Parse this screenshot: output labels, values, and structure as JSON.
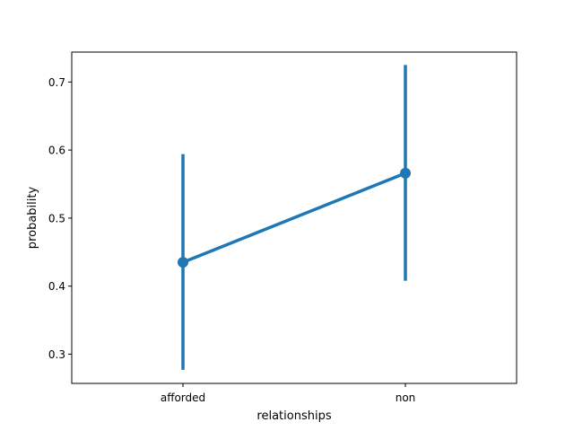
{
  "chart_data": {
    "type": "line",
    "title": "",
    "xlabel": "relationships",
    "ylabel": "probability",
    "categories": [
      "afforded",
      "non"
    ],
    "series": [
      {
        "values": [
          0.435,
          0.566
        ],
        "ci_low": [
          0.277,
          0.408
        ],
        "ci_high": [
          0.594,
          0.725
        ],
        "color": "#1f77b4"
      }
    ],
    "ylim": [
      0.257,
      0.744
    ],
    "yticks": [
      0.3,
      0.4,
      0.5,
      0.6,
      0.7
    ],
    "ytick_labels": [
      "0.3",
      "0.4",
      "0.5",
      "0.6",
      "0.7"
    ],
    "grid": false,
    "legend": "none"
  }
}
